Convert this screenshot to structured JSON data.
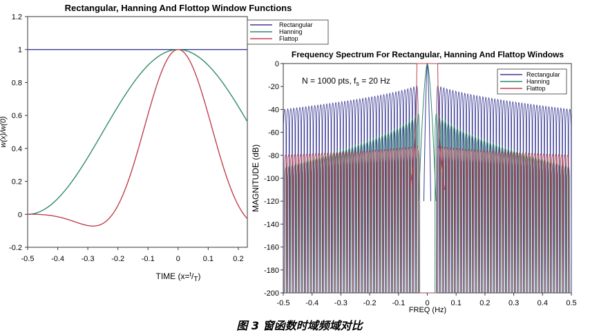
{
  "figure": {
    "caption": "图 3 窗函数时域频域对比"
  },
  "chart_data": [
    {
      "type": "line",
      "title": "Rectangular, Hanning And Flottop Window Functions",
      "xlabel": "TIME (x=t/T)",
      "xlabel_base": "TIME (x=",
      "xlabel_num": "t",
      "xlabel_sep": "/",
      "xlabel_den": "T",
      "xlabel_close": ")",
      "ylabel": "w(x)/w(0)",
      "xlim": [
        -0.5,
        0.23
      ],
      "ylim": [
        -0.2,
        1.2
      ],
      "x_ticks": [
        "-0.5",
        "-0.4",
        "-0.3",
        "-0.2",
        "-0.1",
        "0",
        "0.1",
        "0.2"
      ],
      "y_ticks": [
        "1.2",
        "1",
        "0.8",
        "0.6",
        "0.4",
        "0.2",
        "0",
        "-0.2"
      ],
      "legend_position": "top-right",
      "series": [
        {
          "name": "Rectangular",
          "color": "#3a3a96",
          "function": "1"
        },
        {
          "name": "Hanning",
          "color": "#2e8a68",
          "function": "0.5+0.5cos(2*pi*x)"
        },
        {
          "name": "Flattop",
          "color": "#c0404a",
          "function": "0.2156+0.4160cos(2pi x)+0.2781cos(4pi x)+0.0836cos(6pi x)+0.0069cos(8pi x)"
        }
      ]
    },
    {
      "type": "line",
      "title": "Frequency Spectrum For Rectangular, Hanning And Flattop Windows",
      "annotation": "N = 1000 pts, fs = 20 Hz",
      "annotation_prefix": "N = 1000 pts, f",
      "annotation_sub": "s",
      "annotation_suffix": " = 20 Hz",
      "xlabel": "FREQ (Hz)",
      "ylabel": "MAGNITUDE (dB)",
      "xlim": [
        -0.5,
        0.5
      ],
      "ylim": [
        -200,
        0
      ],
      "x_ticks": [
        "-0.5",
        "-0.4",
        "-0.3",
        "-0.2",
        "-0.1",
        "0",
        "0.1",
        "0.2",
        "0.3",
        "0.4",
        "0.5"
      ],
      "y_ticks": [
        "0",
        "-20",
        "-40",
        "-60",
        "-80",
        "-100",
        "-120",
        "-140",
        "-160",
        "-180",
        "-200"
      ],
      "legend_position": "top-right",
      "series": [
        {
          "name": "Rectangular",
          "color": "#3a3a96",
          "sidelobe_peak_db_at_center": -13,
          "sidelobe_peak_db_at_edge": -40
        },
        {
          "name": "Hanning",
          "color": "#2e8a68",
          "sidelobe_peak_db_at_center": -31,
          "sidelobe_peak_db_at_edge": -90
        },
        {
          "name": "Flattop",
          "color": "#c0404a",
          "sidelobe_peak_db_at_center": -70,
          "sidelobe_peak_db_at_edge": -80
        }
      ]
    }
  ]
}
